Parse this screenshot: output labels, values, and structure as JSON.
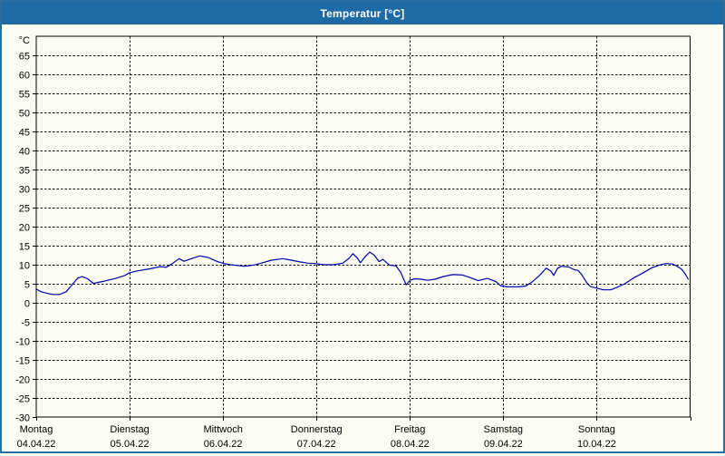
{
  "window": {
    "title": "Temperatur [°C]"
  },
  "colors": {
    "titlebar_bg": "#1e6ba4",
    "title_text": "#ffffff",
    "frame_border": "#2a6e9e",
    "content_bg": "#fbfcf3",
    "grid": "#000000",
    "axis": "#000000",
    "label_text": "#000000",
    "series_line": "#0000aa"
  },
  "chart_data": {
    "type": "line",
    "title": "Temperatur [°C]",
    "y_unit_label": "°C",
    "ylim": [
      -30,
      70
    ],
    "ytick_step": 5,
    "yticks": [
      65,
      60,
      55,
      50,
      45,
      40,
      35,
      30,
      25,
      20,
      15,
      10,
      5,
      0,
      -5,
      -10,
      -15,
      -20,
      -25,
      -30
    ],
    "grid": "dashed",
    "legend": "none",
    "x_axis": {
      "unit": "days",
      "span_days": 7,
      "days": [
        {
          "name": "Montag",
          "date": "04.04.22"
        },
        {
          "name": "Dienstag",
          "date": "05.04.22"
        },
        {
          "name": "Mittwoch",
          "date": "06.04.22"
        },
        {
          "name": "Donnerstag",
          "date": "07.04.22"
        },
        {
          "name": "Freitag",
          "date": "08.04.22"
        },
        {
          "name": "Samstag",
          "date": "09.04.22"
        },
        {
          "name": "Sonntag",
          "date": "10.04.22"
        }
      ]
    },
    "series": [
      {
        "name": "Temperatur",
        "color": "#0000aa",
        "x_unit": "days since Montag 04.04.22 00:00",
        "y_unit": "°C",
        "points": [
          [
            0.0,
            3.6
          ],
          [
            0.05,
            2.9
          ],
          [
            0.13,
            2.4
          ],
          [
            0.18,
            2.2
          ],
          [
            0.25,
            2.2
          ],
          [
            0.32,
            2.9
          ],
          [
            0.39,
            4.9
          ],
          [
            0.44,
            6.4
          ],
          [
            0.49,
            6.9
          ],
          [
            0.55,
            6.3
          ],
          [
            0.61,
            5.1
          ],
          [
            0.73,
            5.7
          ],
          [
            0.85,
            6.4
          ],
          [
            0.95,
            7.2
          ],
          [
            1.0,
            7.9
          ],
          [
            1.09,
            8.4
          ],
          [
            1.21,
            8.9
          ],
          [
            1.33,
            9.5
          ],
          [
            1.39,
            9.3
          ],
          [
            1.45,
            10.2
          ],
          [
            1.53,
            11.6
          ],
          [
            1.58,
            10.9
          ],
          [
            1.65,
            11.5
          ],
          [
            1.75,
            12.3
          ],
          [
            1.84,
            11.9
          ],
          [
            1.94,
            10.8
          ],
          [
            2.01,
            10.3
          ],
          [
            2.08,
            10.0
          ],
          [
            2.23,
            9.6
          ],
          [
            2.33,
            9.9
          ],
          [
            2.42,
            10.5
          ],
          [
            2.52,
            11.2
          ],
          [
            2.64,
            11.6
          ],
          [
            2.73,
            11.2
          ],
          [
            2.81,
            10.8
          ],
          [
            2.91,
            10.4
          ],
          [
            2.99,
            10.3
          ],
          [
            3.08,
            10.0
          ],
          [
            3.18,
            10.0
          ],
          [
            3.28,
            10.4
          ],
          [
            3.35,
            11.7
          ],
          [
            3.39,
            12.9
          ],
          [
            3.44,
            11.7
          ],
          [
            3.47,
            10.5
          ],
          [
            3.52,
            12.1
          ],
          [
            3.57,
            13.3
          ],
          [
            3.62,
            12.5
          ],
          [
            3.67,
            10.8
          ],
          [
            3.71,
            11.4
          ],
          [
            3.78,
            9.9
          ],
          [
            3.85,
            9.7
          ],
          [
            3.9,
            8.1
          ],
          [
            3.96,
            4.7
          ],
          [
            4.0,
            5.9
          ],
          [
            4.05,
            6.3
          ],
          [
            4.12,
            6.2
          ],
          [
            4.19,
            5.9
          ],
          [
            4.27,
            6.2
          ],
          [
            4.36,
            6.9
          ],
          [
            4.46,
            7.4
          ],
          [
            4.56,
            7.3
          ],
          [
            4.65,
            6.6
          ],
          [
            4.73,
            5.8
          ],
          [
            4.83,
            6.4
          ],
          [
            4.92,
            5.6
          ],
          [
            4.97,
            4.5
          ],
          [
            5.04,
            4.2
          ],
          [
            5.16,
            4.2
          ],
          [
            5.24,
            4.4
          ],
          [
            5.31,
            5.5
          ],
          [
            5.38,
            7.0
          ],
          [
            5.46,
            9.1
          ],
          [
            5.51,
            8.3
          ],
          [
            5.54,
            7.2
          ],
          [
            5.58,
            9.0
          ],
          [
            5.62,
            9.6
          ],
          [
            5.7,
            9.4
          ],
          [
            5.76,
            8.7
          ],
          [
            5.8,
            8.5
          ],
          [
            5.84,
            7.4
          ],
          [
            5.89,
            5.4
          ],
          [
            5.93,
            4.3
          ],
          [
            5.99,
            3.9
          ],
          [
            6.07,
            3.4
          ],
          [
            6.15,
            3.4
          ],
          [
            6.22,
            4.1
          ],
          [
            6.3,
            5.0
          ],
          [
            6.4,
            6.6
          ],
          [
            6.5,
            7.9
          ],
          [
            6.59,
            9.2
          ],
          [
            6.67,
            9.9
          ],
          [
            6.74,
            10.3
          ],
          [
            6.81,
            10.2
          ],
          [
            6.86,
            9.6
          ],
          [
            6.91,
            8.8
          ],
          [
            6.95,
            7.5
          ],
          [
            6.98,
            6.2
          ]
        ]
      }
    ]
  }
}
